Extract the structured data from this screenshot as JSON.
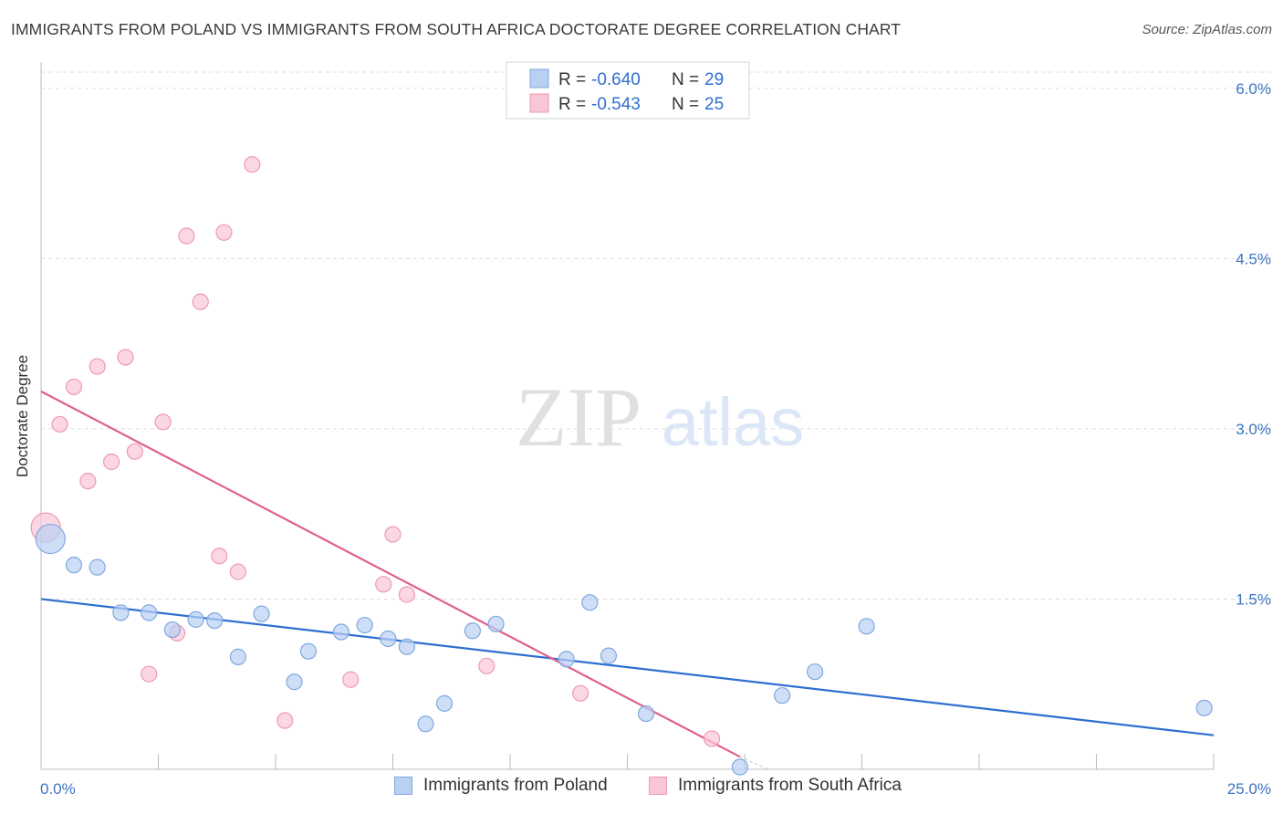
{
  "title": "IMMIGRANTS FROM POLAND VS IMMIGRANTS FROM SOUTH AFRICA DOCTORATE DEGREE CORRELATION CHART",
  "source": "Source: ZipAtlas.com",
  "watermark": {
    "zip": "ZIP",
    "atlas": "atlas"
  },
  "colors": {
    "poland_fill": "#b9d0f3",
    "poland_stroke": "#7fa8e0",
    "poland_line": "#2f6fd1",
    "sa_fill": "#f8c6d5",
    "sa_stroke": "#ee9ab5",
    "sa_line": "#e0608e",
    "tick_label": "#3a75c4",
    "grid": "#dcdcdc"
  },
  "legend_top": {
    "rows": [
      {
        "r_label": "R = ",
        "r_value": "-0.640",
        "n_label": "N = ",
        "n_value": "29"
      },
      {
        "r_label": "R = ",
        "r_value": "-0.543",
        "n_label": "N = ",
        "n_value": "25"
      }
    ]
  },
  "legend_bottom": [
    "Immigrants from Poland",
    "Immigrants from South Africa"
  ],
  "chart_data": {
    "type": "scatter",
    "title": "IMMIGRANTS FROM POLAND VS IMMIGRANTS FROM SOUTH AFRICA DOCTORATE DEGREE CORRELATION CHART",
    "xlabel": "",
    "ylabel": "Doctorate Degree",
    "xlim": [
      0,
      25
    ],
    "ylim": [
      0,
      6.2
    ],
    "x_tick_labels": [
      "0.0%",
      "25.0%"
    ],
    "y_ticks": [
      1.5,
      3.0,
      4.5,
      6.0
    ],
    "y_tick_labels": [
      "1.5%",
      "3.0%",
      "4.5%",
      "6.0%"
    ],
    "grid": true,
    "series": [
      {
        "name": "Immigrants from Poland",
        "r": -0.64,
        "n": 29,
        "points": [
          {
            "x": 0.2,
            "y": 2.03,
            "big": true
          },
          {
            "x": 0.7,
            "y": 1.8
          },
          {
            "x": 1.2,
            "y": 1.78
          },
          {
            "x": 1.7,
            "y": 1.38
          },
          {
            "x": 2.3,
            "y": 1.38
          },
          {
            "x": 2.8,
            "y": 1.23
          },
          {
            "x": 3.3,
            "y": 1.32
          },
          {
            "x": 3.7,
            "y": 1.31
          },
          {
            "x": 4.2,
            "y": 0.99
          },
          {
            "x": 4.7,
            "y": 1.37
          },
          {
            "x": 5.4,
            "y": 0.77
          },
          {
            "x": 5.7,
            "y": 1.04
          },
          {
            "x": 6.4,
            "y": 1.21
          },
          {
            "x": 6.9,
            "y": 1.27
          },
          {
            "x": 7.4,
            "y": 1.15
          },
          {
            "x": 7.8,
            "y": 1.08
          },
          {
            "x": 8.2,
            "y": 0.4
          },
          {
            "x": 8.6,
            "y": 0.58
          },
          {
            "x": 9.2,
            "y": 1.22
          },
          {
            "x": 9.7,
            "y": 1.28
          },
          {
            "x": 11.2,
            "y": 0.97
          },
          {
            "x": 11.7,
            "y": 1.47
          },
          {
            "x": 12.1,
            "y": 1.0
          },
          {
            "x": 12.9,
            "y": 0.49
          },
          {
            "x": 14.9,
            "y": 0.02
          },
          {
            "x": 15.8,
            "y": 0.65
          },
          {
            "x": 16.5,
            "y": 0.86
          },
          {
            "x": 17.6,
            "y": 1.26
          },
          {
            "x": 24.8,
            "y": 0.54
          }
        ],
        "trend": {
          "x0": 0,
          "y0": 1.5,
          "x1": 25,
          "y1": 0.3
        }
      },
      {
        "name": "Immigrants from South Africa",
        "r": -0.543,
        "n": 25,
        "points": [
          {
            "x": 0.1,
            "y": 2.13,
            "big": true
          },
          {
            "x": 0.4,
            "y": 3.04
          },
          {
            "x": 0.7,
            "y": 3.37
          },
          {
            "x": 1.0,
            "y": 2.54
          },
          {
            "x": 1.2,
            "y": 3.55
          },
          {
            "x": 1.5,
            "y": 2.71
          },
          {
            "x": 1.8,
            "y": 3.63
          },
          {
            "x": 2.0,
            "y": 2.8
          },
          {
            "x": 2.3,
            "y": 0.84
          },
          {
            "x": 2.6,
            "y": 3.06
          },
          {
            "x": 2.9,
            "y": 1.2
          },
          {
            "x": 3.1,
            "y": 4.7
          },
          {
            "x": 3.4,
            "y": 4.12
          },
          {
            "x": 3.8,
            "y": 1.88
          },
          {
            "x": 3.9,
            "y": 4.73
          },
          {
            "x": 4.2,
            "y": 1.74
          },
          {
            "x": 4.5,
            "y": 5.33
          },
          {
            "x": 5.2,
            "y": 0.43
          },
          {
            "x": 6.6,
            "y": 0.79
          },
          {
            "x": 7.3,
            "y": 1.63
          },
          {
            "x": 7.5,
            "y": 2.07
          },
          {
            "x": 7.8,
            "y": 1.54
          },
          {
            "x": 9.5,
            "y": 0.91
          },
          {
            "x": 11.5,
            "y": 0.67
          },
          {
            "x": 14.3,
            "y": 0.27
          }
        ],
        "trend": {
          "x0": 0,
          "y0": 3.33,
          "x1": 14.9,
          "y1": 0.11
        },
        "trend_dashed_ext": {
          "x0": 14.9,
          "y0": 0.11,
          "x1": 15.5,
          "y1": 0.0
        }
      }
    ]
  }
}
